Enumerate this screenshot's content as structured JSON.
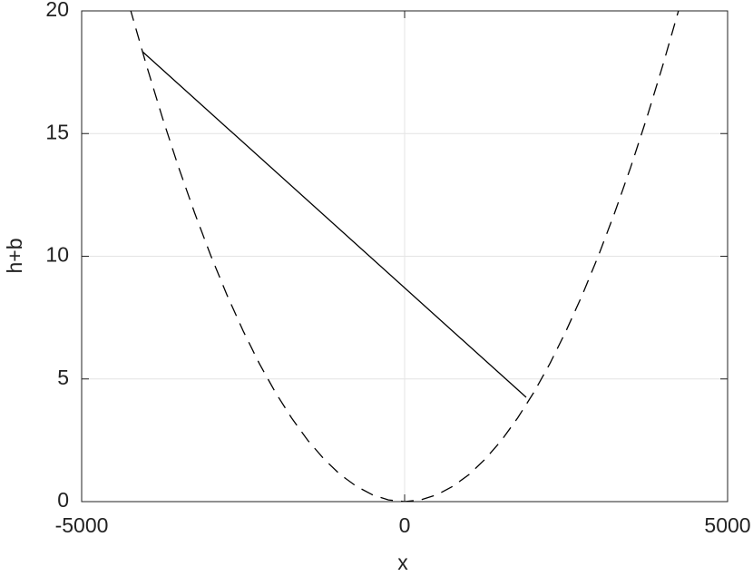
{
  "chart_data": {
    "type": "line",
    "xlabel": "x",
    "ylabel": "h+b",
    "xlim": [
      -5000,
      5000
    ],
    "xticks": [
      -5000,
      0,
      5000
    ],
    "ylim": [
      0,
      20
    ],
    "yticks": [
      0,
      5,
      10,
      15,
      20
    ],
    "grid": true,
    "series": [
      {
        "color": "#000000",
        "dashed": false,
        "x": [
          -4059,
          1882
        ],
        "values": [
          18.34,
          4.25
        ]
      },
      {
        "color": "#000000",
        "dashed": true,
        "x": [
          -4250,
          -4000,
          -3750,
          -3500,
          -3250,
          -3000,
          -2750,
          -2500,
          -2250,
          -2000,
          -1750,
          -1500,
          -1250,
          -1000,
          -750,
          -500,
          -250,
          0,
          250,
          500,
          750,
          1000,
          1250,
          1500,
          1750,
          2000,
          2250,
          2500,
          2750,
          3000,
          3250,
          3500,
          3750,
          4000,
          4250
        ],
        "values": [
          20.1,
          17.81,
          15.65,
          13.63,
          11.76,
          10.02,
          8.42,
          6.96,
          5.63,
          4.45,
          3.41,
          2.5,
          1.74,
          1.11,
          0.63,
          0.28,
          0.07,
          0,
          0.07,
          0.28,
          0.63,
          1.11,
          1.74,
          2.5,
          3.41,
          4.45,
          5.63,
          6.96,
          8.42,
          10.02,
          11.76,
          13.63,
          15.65,
          17.81,
          20.1
        ]
      }
    ]
  }
}
